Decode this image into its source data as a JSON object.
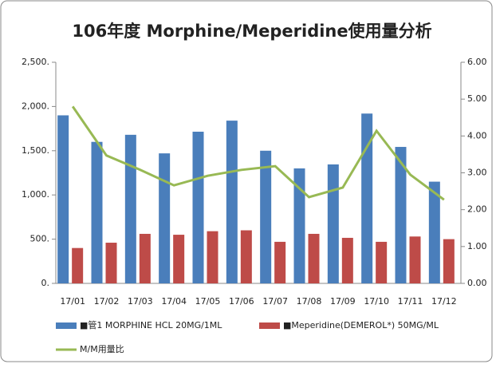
{
  "chart_data": {
    "type": "bar",
    "title": "106年度 Morphine/Meperidine使用量分析",
    "categories": [
      "17/01",
      "17/02",
      "17/03",
      "17/04",
      "17/05",
      "17/06",
      "17/07",
      "17/08",
      "17/09",
      "17/10",
      "17/11",
      "17/12"
    ],
    "series": [
      {
        "name": "■管1 MORPHINE HCL 20MG/1ML",
        "color": "#4a7ebb",
        "type": "bar",
        "values": [
          1900,
          1600,
          1680,
          1470,
          1715,
          1840,
          1500,
          1300,
          1345,
          1920,
          1543,
          1150
        ]
      },
      {
        "name": "■Meperidine(DEMEROL*) 50MG/ML",
        "color": "#be4b48",
        "type": "bar",
        "values": [
          400,
          460,
          560,
          550,
          590,
          600,
          470,
          560,
          515,
          470,
          530,
          500
        ]
      },
      {
        "name": "M/M用量比",
        "color": "#98b954",
        "type": "line",
        "axis": "y2",
        "values": [
          4.8,
          3.47,
          3.08,
          2.66,
          2.92,
          3.08,
          3.18,
          2.34,
          2.6,
          4.14,
          2.95,
          2.27
        ]
      }
    ],
    "ylim": [
      0,
      2500
    ],
    "yticks": [
      {
        "value": 0,
        "label": "0."
      },
      {
        "value": 500,
        "label": "500."
      },
      {
        "value": 1000,
        "label": "1,000."
      },
      {
        "value": 1500,
        "label": "1,500."
      },
      {
        "value": 2000,
        "label": "2,000."
      },
      {
        "value": 2500,
        "label": "2,500."
      }
    ],
    "y2lim": [
      0,
      6
    ],
    "y2ticks": [
      {
        "value": 0,
        "label": "0.00"
      },
      {
        "value": 1,
        "label": "1.00"
      },
      {
        "value": 2,
        "label": "2.00"
      },
      {
        "value": 3,
        "label": "3.00"
      },
      {
        "value": 4,
        "label": "4.00"
      },
      {
        "value": 5,
        "label": "5.00"
      },
      {
        "value": 6,
        "label": "6.00"
      }
    ]
  }
}
